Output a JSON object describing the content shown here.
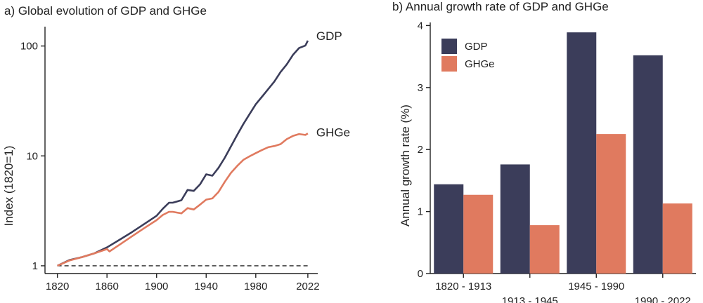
{
  "colors": {
    "gdp": "#3b3d5a",
    "ghge": "#e07a5f",
    "axis": "#222222"
  },
  "chart_data": [
    {
      "id": "a",
      "type": "line",
      "title": "a) Global evolution of GDP and GHGe",
      "xlabel": "",
      "ylabel": "Index (1820=1)",
      "yscale": "log",
      "xlim": [
        1810,
        2030
      ],
      "ylim": [
        0.85,
        150
      ],
      "xticks": [
        1820,
        1860,
        1900,
        1940,
        1980,
        2022
      ],
      "yticks": [
        {
          "value": 1,
          "label": "1"
        },
        {
          "value": 10,
          "label": "10"
        },
        {
          "value": 100,
          "label": "100"
        }
      ],
      "reference_line": {
        "y": 1,
        "style": "dashed"
      },
      "series": [
        {
          "name": "GDP",
          "color": "#3b3d5a",
          "x": [
            1820,
            1830,
            1840,
            1850,
            1860,
            1870,
            1880,
            1890,
            1900,
            1905,
            1910,
            1913,
            1920,
            1925,
            1930,
            1935,
            1940,
            1945,
            1950,
            1955,
            1960,
            1965,
            1970,
            1975,
            1980,
            1985,
            1990,
            1995,
            2000,
            2005,
            2010,
            2015,
            2020,
            2022
          ],
          "values": [
            1.0,
            1.13,
            1.2,
            1.3,
            1.47,
            1.72,
            2.02,
            2.4,
            2.85,
            3.3,
            3.75,
            3.75,
            3.95,
            4.9,
            4.8,
            5.5,
            6.8,
            6.6,
            7.8,
            9.6,
            12.2,
            15.5,
            19.5,
            24.0,
            29.5,
            34.5,
            40.5,
            47.5,
            58.0,
            68.0,
            83.0,
            96.0,
            101.0,
            112.0
          ]
        },
        {
          "name": "GHGe",
          "color": "#e07a5f",
          "x": [
            1820,
            1830,
            1840,
            1850,
            1860,
            1862,
            1870,
            1880,
            1890,
            1900,
            1905,
            1910,
            1913,
            1920,
            1925,
            1930,
            1935,
            1940,
            1945,
            1950,
            1955,
            1960,
            1965,
            1970,
            1975,
            1980,
            1985,
            1990,
            1995,
            2000,
            2005,
            2010,
            2015,
            2020,
            2022
          ],
          "values": [
            1.0,
            1.12,
            1.2,
            1.3,
            1.42,
            1.35,
            1.55,
            1.85,
            2.2,
            2.6,
            2.9,
            3.1,
            3.1,
            3.0,
            3.35,
            3.25,
            3.6,
            4.0,
            4.1,
            4.7,
            5.8,
            7.0,
            8.1,
            9.2,
            9.9,
            10.6,
            11.3,
            12.0,
            12.3,
            12.8,
            14.2,
            15.2,
            15.8,
            15.5,
            16.0
          ]
        }
      ]
    },
    {
      "id": "b",
      "type": "bar",
      "title": "b) Annual growth rate of GDP and GHGe",
      "xlabel": "",
      "ylabel": "Annual growth rate (%)",
      "ylim": [
        0,
        4.05
      ],
      "yticks": [
        0,
        1,
        2,
        3,
        4
      ],
      "categories": [
        "1820 - 1913",
        "1913 - 1945",
        "1945 - 1990",
        "1990 - 2022"
      ],
      "legend": {
        "position": "top-left"
      },
      "series": [
        {
          "name": "GDP",
          "color": "#3b3d5a",
          "values": [
            1.44,
            1.76,
            3.89,
            3.52
          ]
        },
        {
          "name": "GHGe",
          "color": "#e07a5f",
          "values": [
            1.27,
            0.78,
            2.25,
            1.13
          ]
        }
      ]
    }
  ]
}
